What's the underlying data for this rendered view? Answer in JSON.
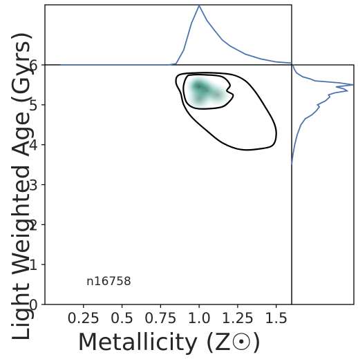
{
  "chart_data": {
    "type": "joint-kde",
    "title": "",
    "xlabel": "Metallicity (Z☉)",
    "ylabel": "Light Weighted Age (Gyrs)",
    "xlim": [
      0.0,
      1.6
    ],
    "ylim": [
      0.0,
      6.0
    ],
    "xticks": [
      0.25,
      0.5,
      0.75,
      1.0,
      1.25,
      1.5
    ],
    "xtick_labels": [
      "0.25",
      "0.5",
      "0.75",
      "1.0",
      "1.25",
      "1.5"
    ],
    "yticks": [
      0,
      1,
      2,
      3,
      4,
      5,
      6
    ],
    "ytick_labels": [
      "0",
      "1",
      "2",
      "3",
      "4",
      "5",
      "6"
    ],
    "annotation": "n16758",
    "colors": {
      "density": "#1b6e5a",
      "marginal": "#4c72b0",
      "contour": "#000000"
    },
    "density_peaks": [
      {
        "x": 1.0,
        "y": 5.45,
        "weight": 1.0
      },
      {
        "x": 1.05,
        "y": 5.35,
        "weight": 0.7
      },
      {
        "x": 1.12,
        "y": 5.25,
        "weight": 0.45
      },
      {
        "x": 1.0,
        "y": 5.15,
        "weight": 0.5
      }
    ],
    "contours": [
      {
        "level": "outer",
        "points": [
          [
            0.98,
            5.8
          ],
          [
            1.1,
            5.8
          ],
          [
            1.22,
            5.75
          ],
          [
            1.3,
            5.6
          ],
          [
            1.36,
            5.35
          ],
          [
            1.42,
            5.0
          ],
          [
            1.48,
            4.6
          ],
          [
            1.5,
            4.3
          ],
          [
            1.48,
            4.0
          ],
          [
            1.4,
            3.9
          ],
          [
            1.27,
            3.88
          ],
          [
            1.15,
            4.05
          ],
          [
            1.05,
            4.35
          ],
          [
            0.95,
            4.7
          ],
          [
            0.9,
            5.0
          ],
          [
            0.88,
            5.3
          ],
          [
            0.85,
            5.55
          ],
          [
            0.87,
            5.75
          ],
          [
            0.98,
            5.8
          ]
        ]
      },
      {
        "level": "inner",
        "points": [
          [
            0.95,
            5.75
          ],
          [
            1.05,
            5.75
          ],
          [
            1.15,
            5.7
          ],
          [
            1.2,
            5.5
          ],
          [
            1.18,
            5.35
          ],
          [
            1.22,
            5.25
          ],
          [
            1.2,
            5.1
          ],
          [
            1.15,
            4.95
          ],
          [
            1.05,
            4.9
          ],
          [
            0.97,
            4.92
          ],
          [
            0.92,
            5.05
          ],
          [
            0.9,
            5.3
          ],
          [
            0.9,
            5.5
          ],
          [
            0.92,
            5.7
          ],
          [
            0.95,
            5.75
          ]
        ]
      }
    ],
    "marginal_x": {
      "x": [
        0.1,
        0.5,
        0.8,
        0.85,
        0.9,
        0.95,
        1.0,
        1.05,
        1.1,
        1.15,
        1.2,
        1.3,
        1.4,
        1.5,
        1.6
      ],
      "density": [
        0.0,
        0.0,
        0.0,
        0.02,
        0.25,
        0.7,
        1.0,
        0.75,
        0.58,
        0.42,
        0.32,
        0.18,
        0.1,
        0.05,
        0.03
      ]
    },
    "marginal_y": {
      "y": [
        3.5,
        3.75,
        4.0,
        4.25,
        4.5,
        4.65,
        4.75,
        4.85,
        4.95,
        5.0,
        5.1,
        5.2,
        5.25,
        5.3,
        5.35,
        5.4,
        5.45,
        5.5,
        5.55,
        5.6,
        5.65,
        5.7,
        5.8,
        5.9,
        6.0
      ],
      "density": [
        0.0,
        0.02,
        0.05,
        0.09,
        0.15,
        0.22,
        0.33,
        0.4,
        0.45,
        0.42,
        0.55,
        0.62,
        0.6,
        0.7,
        0.9,
        0.85,
        0.72,
        1.0,
        0.78,
        0.38,
        0.3,
        0.18,
        0.08,
        0.04,
        0.02
      ]
    }
  }
}
